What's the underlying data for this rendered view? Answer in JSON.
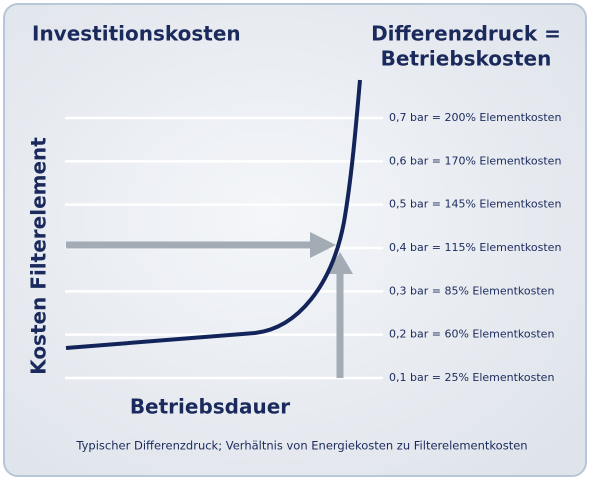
{
  "title": "Investitionskosten",
  "right_title": [
    "Differenzdruck =",
    "Betriebskosten"
  ],
  "levels": [
    "0,7 bar = 200% Elementkosten",
    "0,6 bar = 170% Elementkosten",
    "0,5 bar = 145% Elementkosten",
    "0,4 bar = 115% Elementkosten",
    "0,3 bar = 85% Elementkosten",
    "0,2 bar = 60% Elementkosten",
    "0,1 bar = 25% Elementkosten"
  ],
  "y_label": "Kosten Filterelement",
  "x_label": "Betriebsdauer",
  "caption": "Typischer Differenzdruck; Verhältnis von Energiekosten zu Filterelementkosten"
}
